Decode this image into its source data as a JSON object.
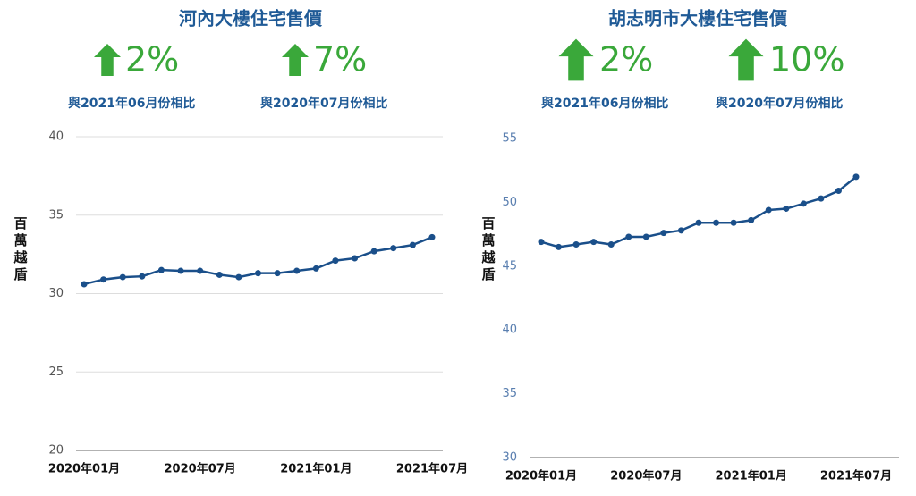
{
  "chart_data": [
    {
      "type": "line",
      "title": "河內大樓住宅售價",
      "highlights": [
        {
          "text": "2%",
          "caption": "與2021年06月份相比"
        },
        {
          "text": "7%",
          "caption": "與2020年07月份相比"
        }
      ],
      "y_label": "百萬越盾",
      "categories": [
        "2020年01月",
        null,
        null,
        null,
        null,
        null,
        "2020年07月",
        null,
        null,
        null,
        null,
        null,
        "2021年01月",
        null,
        null,
        null,
        null,
        null,
        "2021年07月"
      ],
      "series": [
        {
          "name": "河內",
          "color": "#1a4f8a",
          "values": [
            30.6,
            30.9,
            31.05,
            31.1,
            31.5,
            31.45,
            31.45,
            31.2,
            31.05,
            31.3,
            31.3,
            31.45,
            31.6,
            32.1,
            32.25,
            32.7,
            32.9,
            33.1,
            33.6
          ]
        }
      ],
      "ylim": [
        20,
        40
      ],
      "yticks": [
        20,
        25,
        30,
        35,
        40
      ],
      "grid": true,
      "ytick_color": "#555555"
    },
    {
      "type": "line",
      "title": "胡志明市大樓住宅售價",
      "highlights": [
        {
          "text": "2%",
          "caption": "與2021年06月份相比"
        },
        {
          "text": "10%",
          "caption": "與2020年07月份相比"
        }
      ],
      "y_label": "百萬越盾",
      "categories": [
        "2020年01月",
        null,
        null,
        null,
        null,
        null,
        "2020年07月",
        null,
        null,
        null,
        null,
        null,
        "2021年01月",
        null,
        null,
        null,
        null,
        null,
        "2021年07月"
      ],
      "series": [
        {
          "name": "胡志明市",
          "color": "#1a4f8a",
          "values": [
            46.9,
            46.5,
            46.7,
            46.9,
            46.7,
            47.3,
            47.3,
            47.6,
            47.8,
            48.4,
            48.4,
            48.4,
            48.6,
            49.4,
            49.5,
            49.9,
            50.3,
            50.9,
            52.0
          ]
        }
      ],
      "ylim": [
        30,
        55
      ],
      "yticks": [
        30,
        35,
        40,
        45,
        50,
        55
      ],
      "grid": false,
      "ytick_color": "#5a7fb0"
    }
  ]
}
